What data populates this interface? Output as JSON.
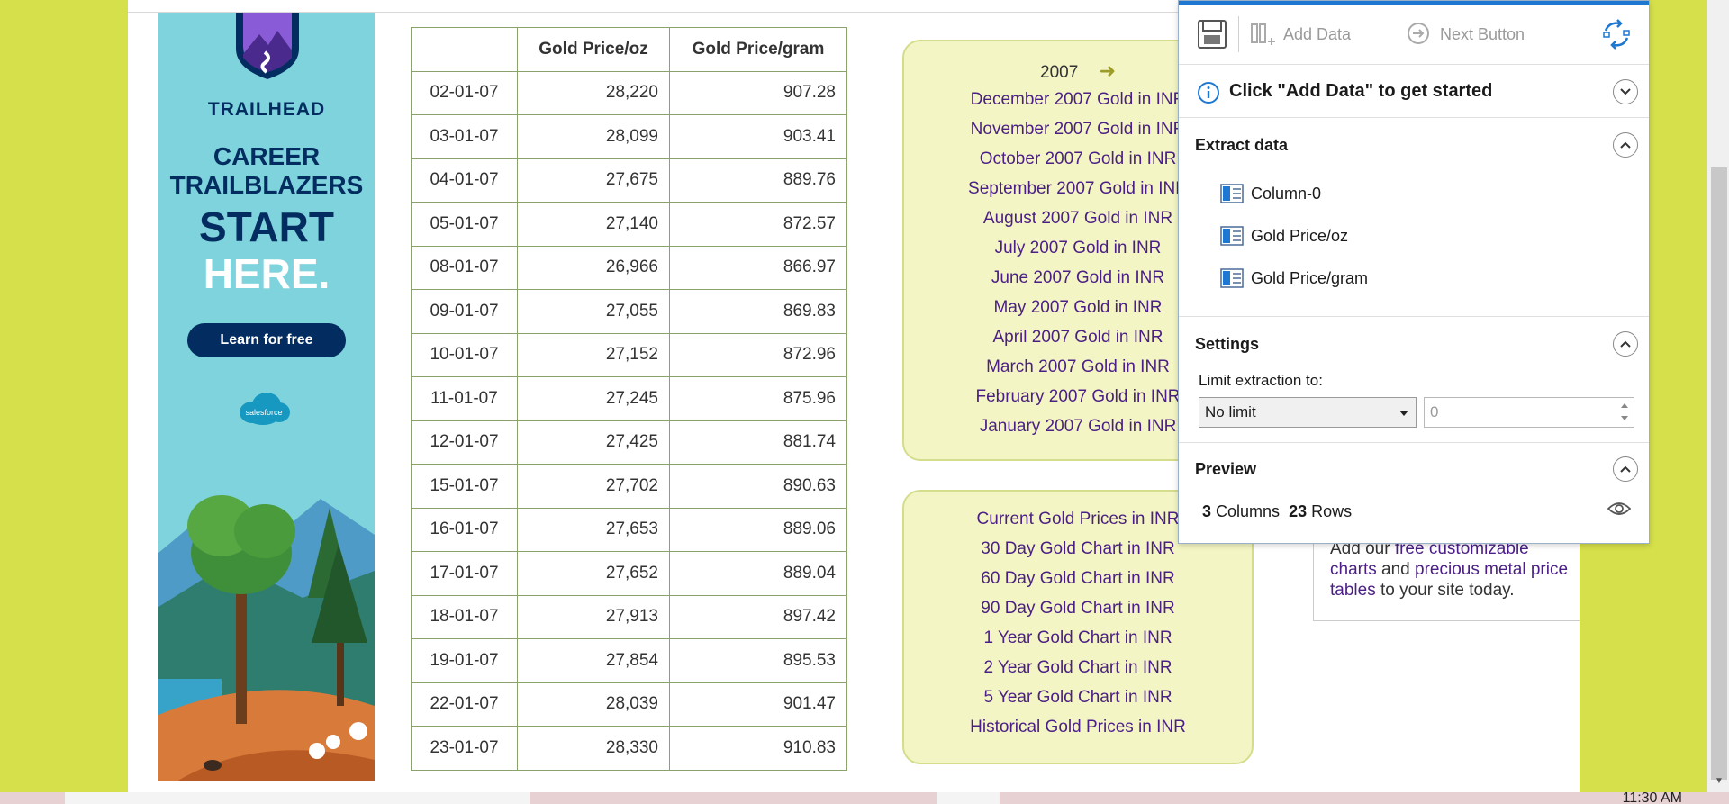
{
  "ad": {
    "brand": "TRAILHEAD",
    "headline_1": "CAREER",
    "headline_2": "TRAILBLAZERS",
    "headline_3": "START",
    "headline_4": "HERE.",
    "cta": "Learn for free",
    "sponsor": "salesforce"
  },
  "table": {
    "headers": [
      "",
      "Gold Price/oz",
      "Gold Price/gram"
    ],
    "rows": [
      [
        "02-01-07",
        "28,220",
        "907.28"
      ],
      [
        "03-01-07",
        "28,099",
        "903.41"
      ],
      [
        "04-01-07",
        "27,675",
        "889.76"
      ],
      [
        "05-01-07",
        "27,140",
        "872.57"
      ],
      [
        "08-01-07",
        "26,966",
        "866.97"
      ],
      [
        "09-01-07",
        "27,055",
        "869.83"
      ],
      [
        "10-01-07",
        "27,152",
        "872.96"
      ],
      [
        "11-01-07",
        "27,245",
        "875.96"
      ],
      [
        "12-01-07",
        "27,425",
        "881.74"
      ],
      [
        "15-01-07",
        "27,702",
        "890.63"
      ],
      [
        "16-01-07",
        "27,653",
        "889.06"
      ],
      [
        "17-01-07",
        "27,652",
        "889.04"
      ],
      [
        "18-01-07",
        "27,913",
        "897.42"
      ],
      [
        "19-01-07",
        "27,854",
        "895.53"
      ],
      [
        "22-01-07",
        "28,039",
        "901.47"
      ],
      [
        "23-01-07",
        "28,330",
        "910.83"
      ]
    ]
  },
  "months": {
    "year": "2007",
    "arrow": "➜",
    "links": [
      "December 2007 Gold in INR",
      "November 2007 Gold in INR",
      "October 2007 Gold in INR",
      "September 2007 Gold in INR",
      "August 2007 Gold in INR",
      "July 2007 Gold in INR",
      "June 2007 Gold in INR",
      "May 2007 Gold in INR",
      "April 2007 Gold in INR",
      "March 2007 Gold in INR",
      "February 2007 Gold in INR",
      "January 2007 Gold in INR"
    ]
  },
  "charts": {
    "links": [
      "Current Gold Prices in INR",
      "30 Day Gold Chart in INR",
      "60 Day Gold Chart in INR",
      "90 Day Gold Chart in INR",
      "1 Year Gold Chart in INR",
      "2 Year Gold Chart in INR",
      "5 Year Gold Chart in INR",
      "Historical Gold Prices in INR"
    ]
  },
  "promo": {
    "prefix": "Add our ",
    "link1": "free customizable charts",
    "middle": " and ",
    "link2": "precious metal price tables",
    "suffix": " to your site today."
  },
  "panel": {
    "add_data": "Add Data",
    "next_button": "Next Button",
    "hint": "Click \"Add Data\" to get started",
    "extract_title": "Extract data",
    "columns": [
      "Column-0",
      "Gold Price/oz",
      "Gold Price/gram"
    ],
    "settings_title": "Settings",
    "limit_label": "Limit extraction to:",
    "limit_value": "No limit",
    "limit_number": "0",
    "preview_title": "Preview",
    "preview_columns": "3",
    "preview_columns_label": "Columns",
    "preview_rows": "23",
    "preview_rows_label": "Rows"
  },
  "taskbar": {
    "clock": "11:30 AM"
  },
  "colors": {
    "page_bg": "#d6e04a",
    "link": "#4b1f86",
    "box_bg": "#f3f6c4",
    "accent": "#1e78d2",
    "ad_bg": "#7fd3dc",
    "ad_navy": "#032d60"
  }
}
